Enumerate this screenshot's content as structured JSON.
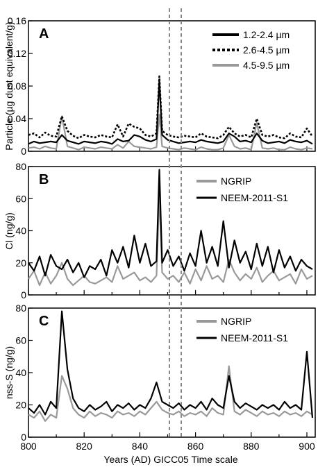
{
  "chart_data": [
    {
      "type": "line",
      "panel_label": "A",
      "ylabel": "Particle (µg dust equivalent/g)",
      "ylim": [
        0,
        0.16
      ],
      "yticks": [
        0,
        0.04,
        0.08,
        0.12,
        0.16
      ],
      "ytick_labels": [
        "0",
        "0.04",
        "0.08",
        "0.12",
        "0.16"
      ],
      "xlim": [
        800,
        903
      ],
      "legend_position": "top-right",
      "series": [
        {
          "name": "1.2-2.4 µm",
          "color": "#000000",
          "dash": "solid",
          "x": [
            800,
            802,
            804,
            806,
            808,
            810,
            812,
            814,
            816,
            818,
            820,
            822,
            824,
            826,
            828,
            830,
            832,
            834,
            836,
            838,
            840,
            842,
            844,
            846,
            847,
            848,
            850,
            852,
            854,
            856,
            858,
            860,
            862,
            864,
            866,
            868,
            870,
            872,
            874,
            876,
            878,
            880,
            882,
            884,
            886,
            888,
            890,
            892,
            894,
            896,
            898,
            900,
            902
          ],
          "values": [
            0.009,
            0.012,
            0.01,
            0.011,
            0.012,
            0.011,
            0.02,
            0.013,
            0.011,
            0.009,
            0.012,
            0.011,
            0.01,
            0.012,
            0.011,
            0.009,
            0.015,
            0.012,
            0.013,
            0.02,
            0.018,
            0.014,
            0.012,
            0.015,
            0.087,
            0.02,
            0.014,
            0.012,
            0.01,
            0.011,
            0.012,
            0.011,
            0.014,
            0.012,
            0.011,
            0.01,
            0.012,
            0.022,
            0.018,
            0.012,
            0.013,
            0.011,
            0.022,
            0.013,
            0.01,
            0.011,
            0.012,
            0.01,
            0.014,
            0.012,
            0.011,
            0.013,
            0.009
          ]
        },
        {
          "name": "2.6-4.5 µm",
          "color": "#000000",
          "dash": "dotted",
          "x": [
            800,
            802,
            804,
            806,
            808,
            810,
            812,
            814,
            816,
            818,
            820,
            822,
            824,
            826,
            828,
            830,
            832,
            834,
            836,
            838,
            840,
            842,
            844,
            846,
            847,
            848,
            850,
            852,
            854,
            856,
            858,
            860,
            862,
            864,
            866,
            868,
            870,
            872,
            874,
            876,
            878,
            880,
            882,
            884,
            886,
            888,
            890,
            892,
            894,
            896,
            898,
            900,
            902
          ],
          "values": [
            0.02,
            0.022,
            0.017,
            0.023,
            0.019,
            0.018,
            0.043,
            0.025,
            0.019,
            0.016,
            0.02,
            0.018,
            0.017,
            0.02,
            0.018,
            0.017,
            0.033,
            0.018,
            0.034,
            0.03,
            0.028,
            0.02,
            0.018,
            0.022,
            0.092,
            0.025,
            0.02,
            0.018,
            0.017,
            0.019,
            0.018,
            0.017,
            0.022,
            0.018,
            0.017,
            0.016,
            0.02,
            0.03,
            0.022,
            0.018,
            0.02,
            0.017,
            0.04,
            0.02,
            0.018,
            0.02,
            0.017,
            0.016,
            0.022,
            0.018,
            0.017,
            0.028,
            0.018
          ]
        },
        {
          "name": "4.5-9.5 µm",
          "color": "#999999",
          "dash": "solid",
          "x": [
            800,
            802,
            804,
            806,
            808,
            810,
            812,
            814,
            816,
            818,
            820,
            822,
            824,
            826,
            828,
            830,
            832,
            834,
            836,
            838,
            840,
            842,
            844,
            846,
            847,
            848,
            850,
            852,
            854,
            856,
            858,
            860,
            862,
            864,
            866,
            868,
            870,
            872,
            874,
            876,
            878,
            880,
            882,
            884,
            886,
            888,
            890,
            892,
            894,
            896,
            898,
            900,
            902
          ],
          "values": [
            0.004,
            0.005,
            0.003,
            0.006,
            0.004,
            0.003,
            0.043,
            0.006,
            0.004,
            0.002,
            0.005,
            0.004,
            0.003,
            0.005,
            0.004,
            0.003,
            0.008,
            0.004,
            0.012,
            0.006,
            0.005,
            0.004,
            0.003,
            0.005,
            0.045,
            0.006,
            0.004,
            0.003,
            0.002,
            0.004,
            0.003,
            0.002,
            0.005,
            0.003,
            0.002,
            0.002,
            0.004,
            0.02,
            0.006,
            0.003,
            0.004,
            0.002,
            0.035,
            0.004,
            0.003,
            0.004,
            0.002,
            0.002,
            0.005,
            0.003,
            0.002,
            0.004,
            0.003
          ]
        }
      ]
    },
    {
      "type": "line",
      "panel_label": "B",
      "ylabel": "Cl (ng/g)",
      "ylim": [
        0,
        80
      ],
      "yticks": [
        0,
        20,
        40,
        60,
        80
      ],
      "ytick_labels": [
        "0",
        "20",
        "40",
        "60",
        "80"
      ],
      "xlim": [
        800,
        903
      ],
      "legend_position": "top-right",
      "series": [
        {
          "name": "NGRIP",
          "color": "#999999",
          "dash": "solid",
          "x": [
            800,
            802,
            804,
            806,
            808,
            810,
            812,
            814,
            816,
            818,
            820,
            822,
            824,
            826,
            828,
            830,
            832,
            834,
            836,
            838,
            840,
            842,
            844,
            846,
            847,
            848,
            850,
            852,
            854,
            856,
            858,
            860,
            862,
            864,
            866,
            868,
            870,
            872,
            874,
            876,
            878,
            880,
            882,
            884,
            886,
            888,
            890,
            892,
            894,
            896,
            898,
            900,
            902
          ],
          "values": [
            10,
            15,
            6,
            14,
            7,
            12,
            20,
            10,
            6,
            9,
            12,
            8,
            7,
            9,
            11,
            8,
            18,
            10,
            12,
            14,
            9,
            11,
            8,
            12,
            63,
            14,
            10,
            12,
            8,
            14,
            7,
            16,
            9,
            18,
            10,
            12,
            8,
            22,
            14,
            9,
            13,
            10,
            17,
            8,
            12,
            15,
            9,
            11,
            13,
            7,
            16,
            10,
            12
          ]
        },
        {
          "name": "NEEM-2011-S1",
          "color": "#000000",
          "dash": "solid",
          "x": [
            800,
            802,
            804,
            806,
            808,
            810,
            812,
            814,
            816,
            818,
            820,
            822,
            824,
            826,
            828,
            830,
            832,
            834,
            836,
            838,
            840,
            842,
            844,
            846,
            847,
            848,
            850,
            852,
            854,
            856,
            858,
            860,
            862,
            864,
            866,
            868,
            870,
            872,
            874,
            876,
            878,
            880,
            882,
            884,
            886,
            888,
            890,
            892,
            894,
            896,
            898,
            900,
            902
          ],
          "values": [
            20,
            15,
            24,
            12,
            25,
            18,
            16,
            22,
            14,
            20,
            11,
            18,
            16,
            22,
            12,
            28,
            20,
            30,
            17,
            37,
            20,
            32,
            18,
            21,
            78,
            20,
            28,
            18,
            24,
            15,
            26,
            18,
            40,
            20,
            30,
            18,
            46,
            17,
            34,
            20,
            27,
            16,
            32,
            18,
            30,
            14,
            28,
            17,
            24,
            15,
            22,
            18,
            16
          ]
        }
      ]
    },
    {
      "type": "line",
      "panel_label": "C",
      "ylabel": "nss-S (ng/g)",
      "xlabel": "Years (AD) GICC05 Time scale",
      "ylim": [
        0,
        80
      ],
      "yticks": [
        0,
        20,
        40,
        60,
        80
      ],
      "ytick_labels": [
        "0",
        "20",
        "40",
        "60",
        "80"
      ],
      "xlim": [
        800,
        903
      ],
      "xticks": [
        800,
        820,
        840,
        860,
        880,
        900
      ],
      "xtick_labels": [
        "800",
        "820",
        "840",
        "860",
        "880",
        "900"
      ],
      "legend_position": "top-right",
      "series": [
        {
          "name": "NGRIP",
          "color": "#999999",
          "dash": "solid",
          "x": [
            800,
            802,
            804,
            806,
            808,
            810,
            812,
            814,
            816,
            818,
            820,
            822,
            824,
            826,
            828,
            830,
            832,
            834,
            836,
            838,
            840,
            842,
            844,
            846,
            848,
            850,
            852,
            854,
            856,
            858,
            860,
            862,
            864,
            866,
            868,
            870,
            872,
            874,
            876,
            878,
            880,
            882,
            884,
            886,
            888,
            890,
            892,
            894,
            896,
            898,
            900,
            902
          ],
          "values": [
            14,
            12,
            16,
            10,
            14,
            12,
            38,
            30,
            18,
            14,
            12,
            16,
            13,
            15,
            14,
            12,
            16,
            14,
            15,
            13,
            16,
            14,
            18,
            22,
            17,
            15,
            14,
            16,
            13,
            15,
            14,
            16,
            13,
            18,
            15,
            14,
            44,
            16,
            14,
            17,
            15,
            13,
            16,
            14,
            15,
            13,
            16,
            14,
            15,
            13,
            16,
            14
          ]
        },
        {
          "name": "NEEM-2011-S1",
          "color": "#000000",
          "dash": "solid",
          "x": [
            800,
            802,
            804,
            806,
            808,
            810,
            812,
            814,
            816,
            818,
            820,
            822,
            824,
            826,
            828,
            830,
            832,
            834,
            836,
            838,
            840,
            842,
            844,
            846,
            848,
            850,
            852,
            854,
            856,
            858,
            860,
            862,
            864,
            866,
            868,
            870,
            872,
            874,
            876,
            878,
            880,
            882,
            884,
            886,
            888,
            890,
            892,
            894,
            896,
            898,
            900,
            902
          ],
          "values": [
            18,
            15,
            20,
            14,
            22,
            18,
            78,
            42,
            24,
            18,
            16,
            20,
            17,
            19,
            22,
            16,
            20,
            18,
            21,
            17,
            20,
            18,
            24,
            34,
            22,
            20,
            18,
            21,
            17,
            20,
            18,
            22,
            17,
            24,
            20,
            18,
            38,
            22,
            18,
            21,
            19,
            17,
            20,
            18,
            20,
            17,
            22,
            18,
            20,
            17,
            53,
            12
          ]
        }
      ]
    }
  ]
}
